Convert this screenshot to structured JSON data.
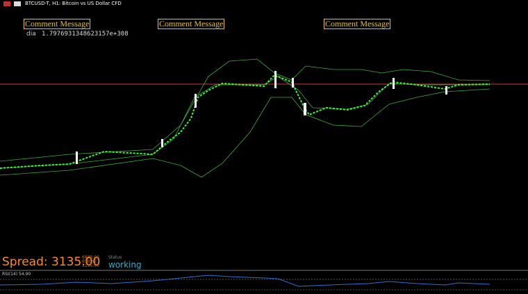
{
  "header": {
    "title": "BTCUSD-T, H1:  Bitcoin vs US Dollar CFD"
  },
  "comments": [
    "Comment Message",
    "Comment Message",
    "Comment Message"
  ],
  "indicator": {
    "label": "dia",
    "value": "1.7976931348623157e+308"
  },
  "info": {
    "spread": "Spread: 3135.00",
    "ask": "6835.00",
    "mid": "650.62",
    "bid": "3135.00",
    "status_label": "Status",
    "status": "working"
  },
  "rsi": {
    "label": "RSI(14) 54.90"
  }
}
